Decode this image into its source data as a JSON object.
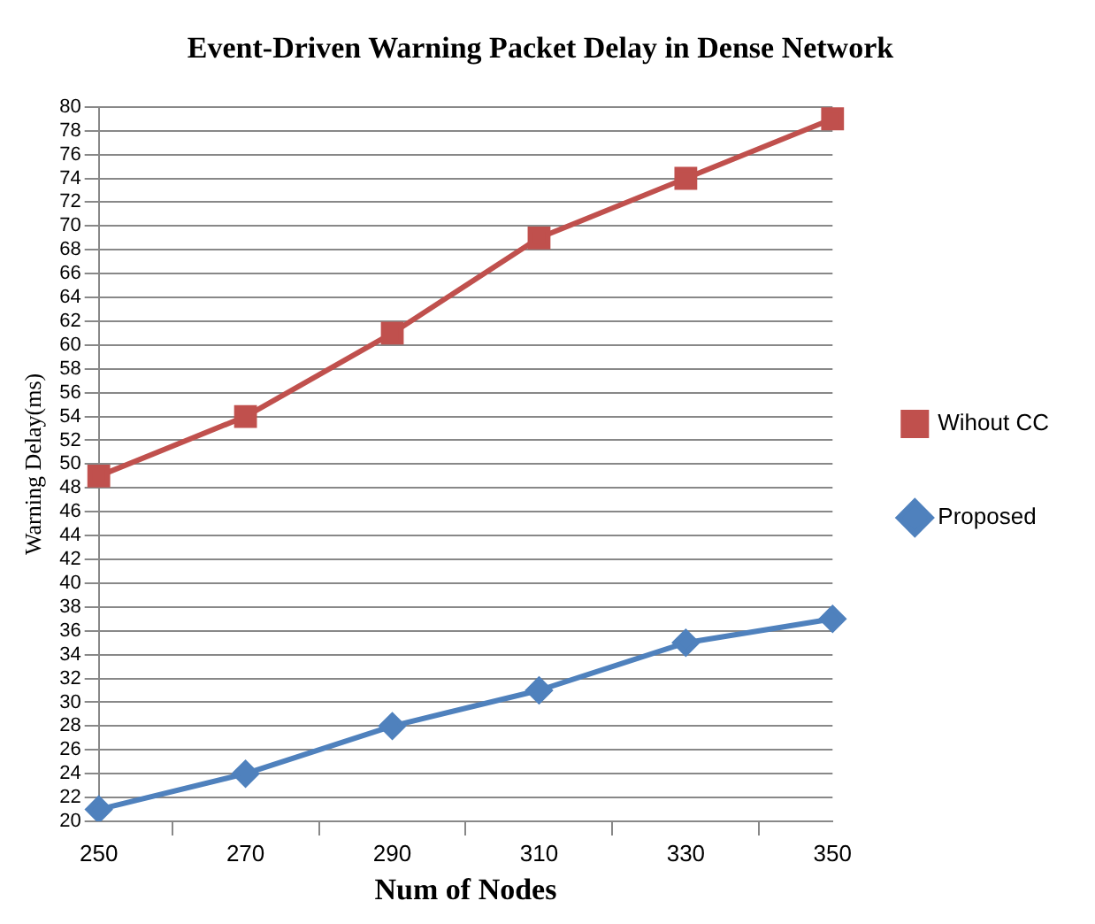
{
  "chart_data": {
    "type": "line",
    "title": "Event-Driven Warning Packet Delay in Dense Network",
    "xlabel": "Num of Nodes",
    "ylabel": "Warning Delay(ms)",
    "categories": [
      "250",
      "270",
      "290",
      "310",
      "330",
      "350"
    ],
    "series": [
      {
        "name": "Wihout CC",
        "color": "#c0504d",
        "marker": "square",
        "values": [
          49,
          54,
          61,
          69,
          74,
          79
        ]
      },
      {
        "name": "Proposed",
        "color": "#4f81bd",
        "marker": "diamond",
        "values": [
          21,
          24,
          28,
          31,
          35,
          37
        ]
      }
    ],
    "ylim": [
      20,
      80
    ],
    "yticks": [
      20,
      22,
      24,
      26,
      28,
      30,
      32,
      34,
      36,
      38,
      40,
      42,
      44,
      46,
      48,
      50,
      52,
      54,
      56,
      58,
      60,
      62,
      64,
      66,
      68,
      70,
      72,
      74,
      76,
      78,
      80
    ],
    "grid": "y",
    "legend": "right"
  }
}
